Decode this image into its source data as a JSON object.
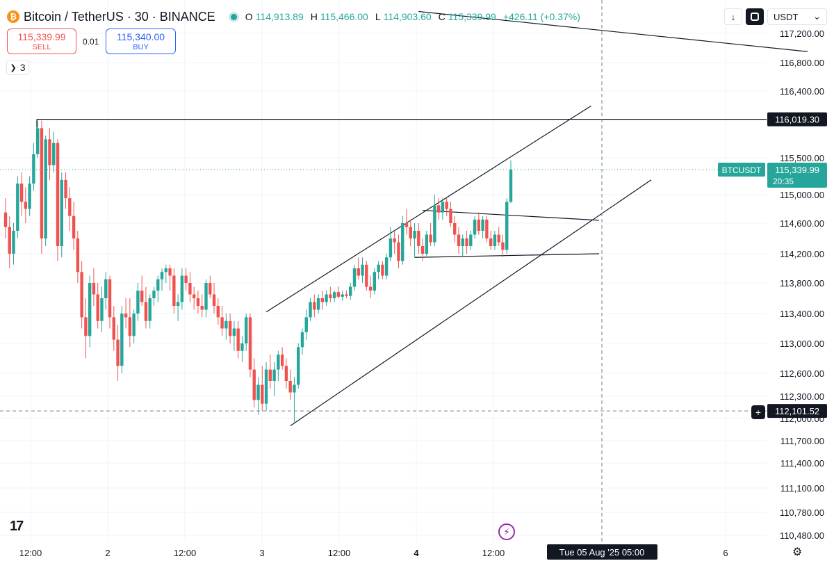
{
  "header": {
    "coin_icon": "₿",
    "title": "Bitcoin / TetherUS · 30 · BINANCE",
    "ohlc": {
      "o_label": "O",
      "o": "114,913.89",
      "h_label": "H",
      "h": "115,466.00",
      "l_label": "L",
      "l": "114,903.60",
      "c_label": "C",
      "c": "115,339.99",
      "change": "+426.11 (+0.37%)"
    }
  },
  "trade": {
    "sell_price": "115,339.99",
    "sell_label": "SELL",
    "spread": "0.01",
    "buy_price": "115,340.00",
    "buy_label": "BUY"
  },
  "indicators_count": "3",
  "toolbar": {
    "down_icon": "↓",
    "currency": "USDT",
    "currency_chevron": "⌄"
  },
  "bottom": {
    "logo": "17",
    "bolt_icon": "⚡",
    "gear_icon": "⚙"
  },
  "crosshair": {
    "price_label": "112,101.52",
    "time_label": "Tue 05 Aug '25   05:00",
    "plus_icon": "+"
  },
  "colors": {
    "up": "#26a69a",
    "down": "#ef5350",
    "grid": "#f0f3fa",
    "line": "#131722"
  },
  "chart_data": {
    "type": "candlestick",
    "symbol": "BTCUSDT",
    "interval": "30",
    "price_axis": {
      "ticks": [
        117200,
        116800,
        116400,
        115500,
        115000,
        114600,
        114200,
        113800,
        113400,
        113000,
        112600,
        112300,
        112000,
        111700,
        111400,
        111100,
        110780,
        110480
      ],
      "tick_labels": [
        "117,200.00",
        "116,800.00",
        "116,400.00",
        "115,500.00",
        "115,000.00",
        "114,600.00",
        "114,200.00",
        "113,800.00",
        "113,400.00",
        "113,000.00",
        "112,600.00",
        "112,300.00",
        "112,000.00",
        "111,700.00",
        "111,400.00",
        "111,100.00",
        "110,780.00",
        "110,480.00"
      ]
    },
    "time_axis": {
      "labels": [
        "12:00",
        "2",
        "12:00",
        "3",
        "12:00",
        "4",
        "12:00",
        "6"
      ],
      "bold": [
        false,
        false,
        false,
        false,
        false,
        true,
        false,
        false
      ]
    },
    "current_price": {
      "symbol_label": "BTCUSDT",
      "price": 115339.99,
      "price_label": "115,339.99",
      "countdown": "20:35"
    },
    "horizontal_line": {
      "price": 116019.3,
      "label": "116,019.30"
    },
    "crosshair_price": 112101.52,
    "candles": [
      [
        114750,
        114950,
        114400,
        114550
      ],
      [
        114550,
        114700,
        114000,
        114200
      ],
      [
        114200,
        114600,
        114050,
        114500
      ],
      [
        114500,
        115250,
        114400,
        115150
      ],
      [
        115150,
        115300,
        114700,
        114900
      ],
      [
        114900,
        115100,
        114600,
        114800
      ],
      [
        114800,
        115250,
        114700,
        115150
      ],
      [
        115150,
        115700,
        115050,
        115550
      ],
      [
        115550,
        116000,
        115500,
        115900
      ],
      [
        115900,
        116000,
        114200,
        114400
      ],
      [
        114400,
        115800,
        114300,
        115750
      ],
      [
        115750,
        115900,
        115200,
        115400
      ],
      [
        115400,
        115850,
        115300,
        115700
      ],
      [
        115700,
        115750,
        114100,
        114300
      ],
      [
        114300,
        115300,
        114150,
        115200
      ],
      [
        115200,
        115300,
        114800,
        114950
      ],
      [
        114950,
        115100,
        114500,
        114700
      ],
      [
        114700,
        114900,
        114250,
        114400
      ],
      [
        114400,
        114500,
        113800,
        113950
      ],
      [
        113950,
        114100,
        113200,
        113350
      ],
      [
        113350,
        113600,
        112800,
        113100
      ],
      [
        113100,
        113900,
        112950,
        113800
      ],
      [
        113800,
        114000,
        113500,
        113650
      ],
      [
        113650,
        113800,
        113200,
        113300
      ],
      [
        113300,
        113750,
        113150,
        113600
      ],
      [
        113600,
        113950,
        113450,
        113850
      ],
      [
        113850,
        113900,
        113200,
        113350
      ],
      [
        113350,
        113500,
        112900,
        113050
      ],
      [
        113050,
        113250,
        112500,
        112700
      ],
      [
        112700,
        113500,
        112600,
        113400
      ],
      [
        113400,
        113600,
        113200,
        113350
      ],
      [
        113350,
        113600,
        112950,
        113100
      ],
      [
        113100,
        113450,
        113000,
        113400
      ],
      [
        113400,
        113800,
        113300,
        113700
      ],
      [
        113700,
        113900,
        113500,
        113550
      ],
      [
        113550,
        113750,
        113200,
        113300
      ],
      [
        113300,
        113650,
        113200,
        113600
      ],
      [
        113600,
        113750,
        113500,
        113700
      ],
      [
        113700,
        113900,
        113550,
        113850
      ],
      [
        113850,
        114000,
        113700,
        113950
      ],
      [
        113950,
        114050,
        113800,
        114000
      ],
      [
        114000,
        114050,
        113700,
        113900
      ],
      [
        113900,
        114000,
        113400,
        113500
      ],
      [
        113500,
        113650,
        113300,
        113550
      ],
      [
        113550,
        114000,
        113450,
        113900
      ],
      [
        113900,
        114000,
        113700,
        113800
      ],
      [
        113800,
        113950,
        113550,
        113650
      ],
      [
        113650,
        113750,
        113450,
        113600
      ],
      [
        113600,
        113700,
        113400,
        113500
      ],
      [
        113500,
        113650,
        113350,
        113450
      ],
      [
        113450,
        113850,
        113350,
        113800
      ],
      [
        113800,
        113900,
        113600,
        113650
      ],
      [
        113650,
        113800,
        113400,
        113500
      ],
      [
        113500,
        113600,
        113250,
        113350
      ],
      [
        113350,
        113500,
        113100,
        113200
      ],
      [
        113200,
        113400,
        113050,
        113300
      ],
      [
        113300,
        113400,
        113000,
        113100
      ],
      [
        113100,
        113300,
        112900,
        113200
      ],
      [
        113200,
        113300,
        112800,
        112900
      ],
      [
        112900,
        113100,
        112750,
        113000
      ],
      [
        113000,
        113400,
        112900,
        113350
      ],
      [
        113350,
        113400,
        112550,
        112650
      ],
      [
        112650,
        112800,
        112150,
        112250
      ],
      [
        112250,
        112550,
        112050,
        112450
      ],
      [
        112450,
        112700,
        112100,
        112200
      ],
      [
        112200,
        112750,
        112100,
        112650
      ],
      [
        112650,
        112850,
        112400,
        112500
      ],
      [
        112500,
        112750,
        112300,
        112650
      ],
      [
        112650,
        112900,
        112500,
        112850
      ],
      [
        112850,
        112950,
        112650,
        112700
      ],
      [
        112700,
        112800,
        112400,
        112500
      ],
      [
        112500,
        112650,
        112250,
        112350
      ],
      [
        112350,
        112550,
        111950,
        112450
      ],
      [
        112450,
        113000,
        112400,
        112950
      ],
      [
        112950,
        113200,
        112850,
        113150
      ],
      [
        113150,
        113450,
        113050,
        113350
      ],
      [
        113350,
        113600,
        113300,
        113550
      ],
      [
        113550,
        113650,
        113350,
        113450
      ],
      [
        113450,
        113650,
        113400,
        113600
      ],
      [
        113600,
        113700,
        113450,
        113550
      ],
      [
        113550,
        113700,
        113500,
        113650
      ],
      [
        113650,
        113750,
        113550,
        113600
      ],
      [
        113600,
        113700,
        113550,
        113680
      ],
      [
        113680,
        113750,
        113600,
        113620
      ],
      [
        113620,
        113700,
        113570,
        113650
      ],
      [
        113650,
        113700,
        113600,
        113630
      ],
      [
        113630,
        113800,
        113580,
        113750
      ],
      [
        113750,
        114050,
        113700,
        114000
      ],
      [
        114000,
        114150,
        113850,
        113900
      ],
      [
        113900,
        114150,
        113800,
        114050
      ],
      [
        114050,
        114100,
        113700,
        113750
      ],
      [
        113750,
        113900,
        113600,
        113700
      ],
      [
        113700,
        114000,
        113650,
        113950
      ],
      [
        113950,
        114100,
        113850,
        114050
      ],
      [
        114050,
        114100,
        113850,
        113900
      ],
      [
        113900,
        114200,
        113850,
        114150
      ],
      [
        114150,
        114550,
        114100,
        114400
      ],
      [
        114400,
        114500,
        114200,
        114350
      ],
      [
        114350,
        114450,
        114000,
        114100
      ],
      [
        114100,
        114700,
        114050,
        114600
      ],
      [
        114600,
        114800,
        114450,
        114550
      ],
      [
        114550,
        114650,
        114300,
        114400
      ],
      [
        114400,
        114600,
        114150,
        114500
      ],
      [
        114500,
        114600,
        114200,
        114300
      ],
      [
        114300,
        114400,
        114100,
        114200
      ],
      [
        114200,
        114500,
        114150,
        114450
      ],
      [
        114450,
        114600,
        114300,
        114350
      ],
      [
        114350,
        115000,
        114300,
        114850
      ],
      [
        114850,
        114950,
        114650,
        114750
      ],
      [
        114750,
        114950,
        114650,
        114900
      ],
      [
        114900,
        114950,
        114700,
        114800
      ],
      [
        114800,
        114900,
        114550,
        114600
      ],
      [
        114600,
        114700,
        114350,
        114450
      ],
      [
        114450,
        114550,
        114200,
        114300
      ],
      [
        114300,
        114450,
        114150,
        114400
      ],
      [
        114400,
        114500,
        114200,
        114300
      ],
      [
        114300,
        114500,
        114250,
        114450
      ],
      [
        114450,
        114700,
        114400,
        114650
      ],
      [
        114650,
        114750,
        114450,
        114500
      ],
      [
        114500,
        114700,
        114400,
        114650
      ],
      [
        114650,
        114700,
        114350,
        114400
      ],
      [
        114400,
        114500,
        114250,
        114300
      ],
      [
        114300,
        114500,
        114250,
        114450
      ],
      [
        114450,
        114550,
        114300,
        114350
      ],
      [
        114350,
        114450,
        114150,
        114250
      ],
      [
        114250,
        114950,
        114200,
        114900
      ],
      [
        114900,
        115466,
        114880,
        115340
      ]
    ],
    "trendlines": [
      {
        "name": "channel-upper",
        "points": [
          [
            65,
            113420
          ],
          [
            146,
            116200
          ]
        ]
      },
      {
        "name": "channel-lower",
        "points": [
          [
            71,
            111900
          ],
          [
            161,
            115200
          ]
        ]
      },
      {
        "name": "triangle-upper",
        "points": [
          [
            104,
            114780
          ],
          [
            148,
            114640
          ]
        ]
      },
      {
        "name": "triangle-lower",
        "points": [
          [
            102,
            114150
          ],
          [
            148,
            114200
          ]
        ]
      },
      {
        "name": "top-descending",
        "points": [
          [
            103,
            117500
          ],
          [
            200,
            116950
          ]
        ]
      }
    ]
  }
}
